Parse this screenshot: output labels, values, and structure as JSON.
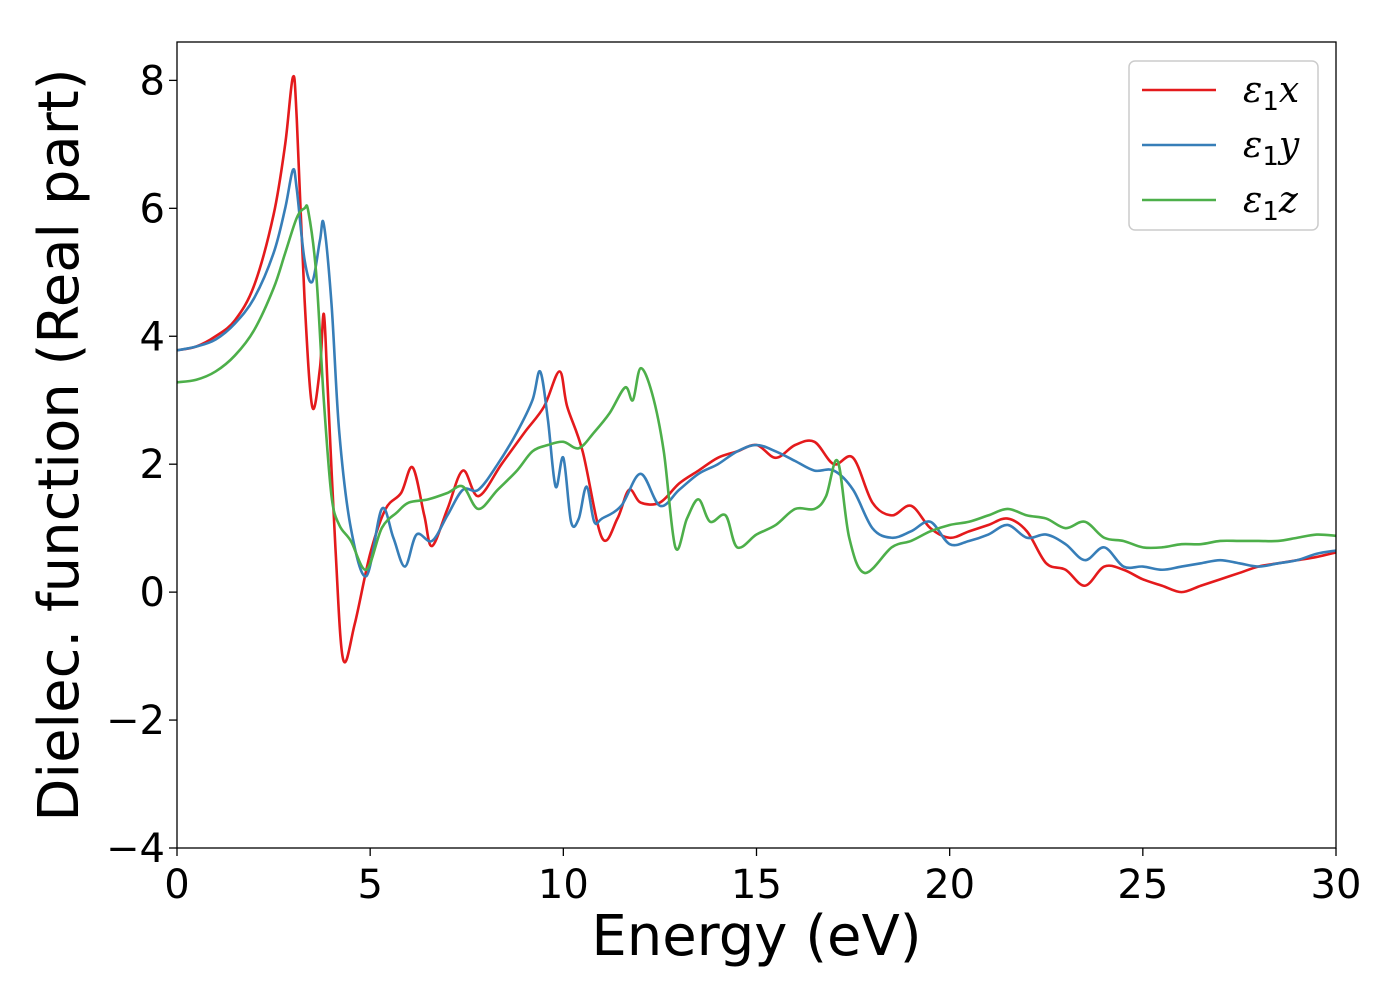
{
  "chart_data": {
    "type": "line",
    "title": "",
    "xlabel": "Energy (eV)",
    "ylabel": "Dielec. function (Real part)",
    "xlim": [
      0,
      30
    ],
    "ylim": [
      -4,
      8.6
    ],
    "xticks": [
      0,
      5,
      10,
      15,
      20,
      25,
      30
    ],
    "xtick_labels": [
      "0",
      "5",
      "10",
      "15",
      "20",
      "25",
      "30"
    ],
    "yticks": [
      -4,
      -2,
      0,
      2,
      4,
      6,
      8
    ],
    "ytick_labels": [
      "−4",
      "−2",
      "0",
      "2",
      "4",
      "6",
      "8"
    ],
    "grid": false,
    "legend_position": "top-right",
    "series": [
      {
        "name": "ε1x",
        "label_symbol": "ε",
        "label_sub": "1",
        "label_axis": "x",
        "color": "#e41a1c",
        "x": [
          0,
          0.5,
          1.0,
          1.5,
          2.0,
          2.5,
          2.8,
          3.0,
          3.1,
          3.3,
          3.5,
          3.7,
          3.8,
          3.9,
          4.1,
          4.3,
          4.6,
          5.0,
          5.4,
          5.8,
          6.1,
          6.4,
          6.6,
          7.0,
          7.4,
          7.8,
          8.4,
          9.0,
          9.5,
          9.9,
          10.1,
          10.5,
          11.0,
          11.4,
          11.7,
          12.0,
          12.5,
          13.0,
          13.5,
          14.0,
          14.5,
          15.0,
          15.5,
          16.0,
          16.5,
          17.0,
          17.5,
          18.0,
          18.5,
          19.0,
          19.5,
          20.0,
          20.5,
          21.0,
          21.5,
          22.0,
          22.5,
          23.0,
          23.5,
          24.0,
          24.5,
          25.0,
          25.5,
          26.0,
          26.5,
          27.0,
          27.5,
          28.0,
          28.5,
          29.0,
          29.5,
          30.0
        ],
        "y": [
          3.78,
          3.84,
          4.0,
          4.25,
          4.8,
          5.9,
          7.0,
          8.05,
          7.4,
          4.6,
          2.9,
          3.5,
          4.35,
          3.2,
          0.7,
          -1.05,
          -0.5,
          0.6,
          1.3,
          1.55,
          1.95,
          1.2,
          0.72,
          1.3,
          1.9,
          1.5,
          2.0,
          2.5,
          2.9,
          3.45,
          2.9,
          2.2,
          0.85,
          1.15,
          1.6,
          1.4,
          1.4,
          1.7,
          1.9,
          2.1,
          2.2,
          2.3,
          2.1,
          2.3,
          2.35,
          2.0,
          2.1,
          1.4,
          1.2,
          1.35,
          1.0,
          0.85,
          0.95,
          1.05,
          1.15,
          0.95,
          0.45,
          0.35,
          0.1,
          0.4,
          0.35,
          0.2,
          0.1,
          0.0,
          0.1,
          0.2,
          0.3,
          0.4,
          0.45,
          0.5,
          0.55,
          0.62
        ]
      },
      {
        "name": "ε1y",
        "label_symbol": "ε",
        "label_sub": "1",
        "label_axis": "y",
        "color": "#377eb8",
        "x": [
          0,
          0.5,
          1.0,
          1.5,
          2.0,
          2.5,
          2.8,
          3.0,
          3.1,
          3.3,
          3.5,
          3.7,
          3.8,
          4.0,
          4.2,
          4.5,
          4.9,
          5.3,
          5.6,
          5.9,
          6.2,
          6.6,
          7.0,
          7.4,
          7.8,
          8.3,
          8.8,
          9.2,
          9.4,
          9.6,
          9.8,
          10.0,
          10.2,
          10.4,
          10.6,
          10.8,
          11.0,
          11.5,
          12.0,
          12.5,
          13.0,
          13.5,
          14.0,
          14.5,
          15.0,
          15.5,
          16.0,
          16.5,
          17.0,
          17.5,
          18.0,
          18.5,
          19.0,
          19.5,
          20.0,
          20.5,
          21.0,
          21.5,
          22.0,
          22.5,
          23.0,
          23.5,
          24.0,
          24.5,
          25.0,
          25.5,
          26.0,
          26.5,
          27.0,
          27.5,
          28.0,
          28.5,
          29.0,
          29.5,
          30.0
        ],
        "y": [
          3.78,
          3.84,
          3.95,
          4.2,
          4.6,
          5.3,
          6.0,
          6.6,
          6.3,
          5.2,
          4.85,
          5.5,
          5.75,
          4.5,
          2.5,
          1.0,
          0.25,
          1.3,
          0.85,
          0.4,
          0.9,
          0.8,
          1.2,
          1.6,
          1.6,
          2.0,
          2.5,
          3.0,
          3.45,
          2.7,
          1.65,
          2.1,
          1.1,
          1.15,
          1.65,
          1.1,
          1.15,
          1.35,
          1.85,
          1.35,
          1.6,
          1.85,
          2.0,
          2.2,
          2.3,
          2.2,
          2.05,
          1.9,
          1.9,
          1.6,
          1.0,
          0.85,
          0.95,
          1.1,
          0.75,
          0.8,
          0.9,
          1.05,
          0.85,
          0.9,
          0.75,
          0.5,
          0.7,
          0.4,
          0.4,
          0.35,
          0.4,
          0.45,
          0.5,
          0.45,
          0.4,
          0.45,
          0.5,
          0.6,
          0.65
        ]
      },
      {
        "name": "ε1z",
        "label_symbol": "ε",
        "label_sub": "1",
        "label_axis": "z",
        "color": "#4daf4a",
        "x": [
          0,
          0.5,
          1.0,
          1.5,
          2.0,
          2.5,
          2.8,
          3.1,
          3.3,
          3.4,
          3.6,
          3.8,
          4.0,
          4.2,
          4.5,
          4.9,
          5.3,
          5.7,
          6.0,
          6.5,
          7.0,
          7.4,
          7.8,
          8.3,
          8.8,
          9.2,
          9.6,
          10.0,
          10.4,
          10.8,
          11.2,
          11.6,
          11.8,
          12.0,
          12.3,
          12.6,
          12.9,
          13.2,
          13.5,
          13.8,
          14.2,
          14.5,
          15.0,
          15.5,
          16.0,
          16.5,
          16.8,
          17.1,
          17.4,
          17.8,
          18.5,
          19.0,
          19.5,
          20.0,
          20.5,
          21.0,
          21.5,
          22.0,
          22.5,
          23.0,
          23.5,
          24.0,
          24.5,
          25.0,
          25.5,
          26.0,
          26.5,
          27.0,
          27.5,
          28.0,
          28.5,
          29.0,
          29.5,
          30.0
        ],
        "y": [
          3.28,
          3.32,
          3.45,
          3.7,
          4.1,
          4.75,
          5.3,
          5.85,
          6.0,
          5.95,
          5.0,
          3.0,
          1.5,
          1.05,
          0.8,
          0.35,
          1.0,
          1.25,
          1.4,
          1.45,
          1.55,
          1.65,
          1.3,
          1.6,
          1.9,
          2.2,
          2.3,
          2.35,
          2.25,
          2.5,
          2.8,
          3.2,
          3.0,
          3.5,
          3.1,
          2.2,
          0.7,
          1.15,
          1.45,
          1.1,
          1.2,
          0.7,
          0.9,
          1.05,
          1.3,
          1.3,
          1.5,
          2.05,
          0.85,
          0.3,
          0.7,
          0.8,
          0.95,
          1.05,
          1.1,
          1.2,
          1.3,
          1.2,
          1.15,
          1.0,
          1.1,
          0.85,
          0.8,
          0.7,
          0.7,
          0.75,
          0.75,
          0.8,
          0.8,
          0.8,
          0.8,
          0.85,
          0.9,
          0.88
        ]
      }
    ]
  }
}
